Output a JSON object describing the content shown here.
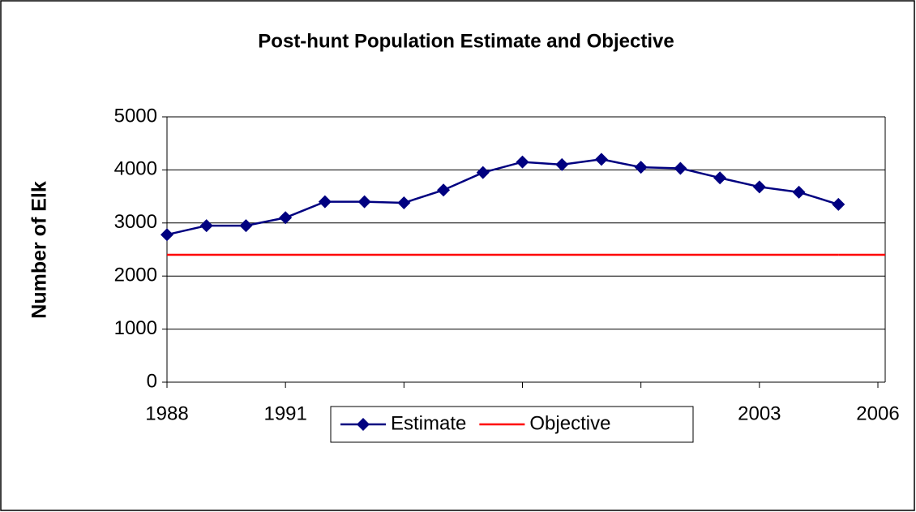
{
  "chart_data": {
    "type": "line",
    "title": "Post-hunt Population Estimate and Objective",
    "y_label": "Number of Elk",
    "x": [
      1988,
      1989,
      1990,
      1991,
      1992,
      1993,
      1994,
      1995,
      1996,
      1997,
      1998,
      1999,
      2000,
      2001,
      2002,
      2003,
      2004,
      2005
    ],
    "series": [
      {
        "name": "Estimate",
        "color": "#000080",
        "marker": "diamond",
        "values": [
          2780,
          2950,
          2950,
          3100,
          3400,
          3400,
          3380,
          3620,
          3950,
          4150,
          4100,
          4200,
          4050,
          4030,
          3850,
          3680,
          3580,
          3350
        ]
      },
      {
        "name": "Objective",
        "color": "#ff0000",
        "values": [
          2400,
          2400,
          2400,
          2400,
          2400,
          2400,
          2400,
          2400,
          2400,
          2400,
          2400,
          2400,
          2400,
          2400,
          2400,
          2400,
          2400,
          2400
        ]
      }
    ],
    "xlim": [
      1988,
      2006
    ],
    "xticks": [
      1988,
      1991,
      1994,
      1997,
      2000,
      2003,
      2006
    ],
    "ylim": [
      0,
      5000
    ],
    "yticks": [
      0,
      1000,
      2000,
      3000,
      4000,
      5000
    ],
    "grid": true,
    "legend": "bottom"
  }
}
